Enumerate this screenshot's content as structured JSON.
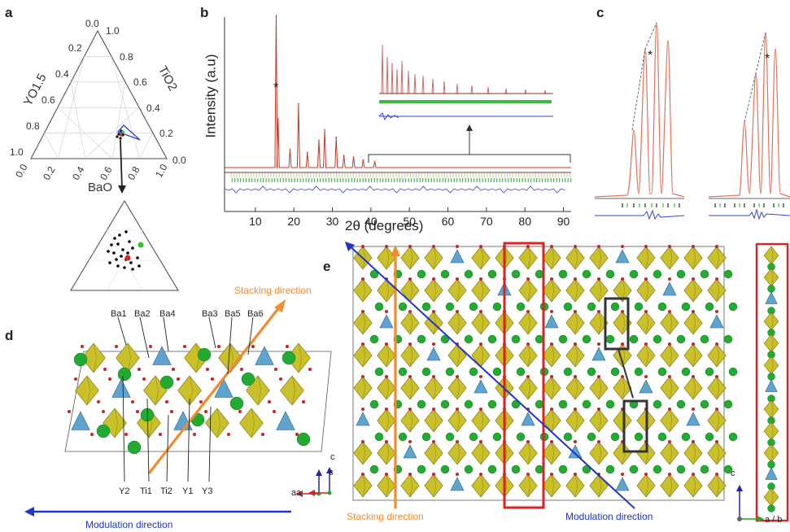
{
  "panels": {
    "a": "a",
    "b": "b",
    "c": "c",
    "d": "d",
    "e": "e"
  },
  "panel_a": {
    "left_axis_ticks": [
      "0.0",
      "0.2",
      "0.4",
      "0.6",
      "0.8",
      "1.0"
    ],
    "right_axis_ticks": [
      "1.0",
      "0.8",
      "0.6",
      "0.4",
      "0.2",
      "0.0"
    ],
    "bottom_axis_ticks": [
      "0.0",
      "0.2",
      "0.4",
      "0.6",
      "0.8",
      "1.0"
    ],
    "left_label": "YO1.5",
    "right_label": "TiO2",
    "bottom_label": "BaO",
    "inset_colors": {
      "black": "#000000",
      "green": "#22cc22",
      "red": "#dd2222"
    }
  },
  "chart_data": {
    "type": "line",
    "xlabel": "2θ (degrees)",
    "ylabel": "Intensity (a.u)",
    "xlim": [
      2,
      92
    ],
    "x_ticks": [
      "10",
      "20",
      "30",
      "40",
      "50",
      "60",
      "70",
      "80",
      "90"
    ],
    "annotations": [
      "*"
    ],
    "colors": {
      "observed": "#c0392b",
      "calculated": "#e59a9a",
      "reflections": "#22aa22",
      "difference": "#3344cc"
    },
    "peaks": [
      {
        "x": 15.4,
        "y": 1.0
      },
      {
        "x": 15.9,
        "y": 0.32
      },
      {
        "x": 19.0,
        "y": 0.12
      },
      {
        "x": 21.2,
        "y": 0.42
      },
      {
        "x": 23.5,
        "y": 0.1
      },
      {
        "x": 26.5,
        "y": 0.18
      },
      {
        "x": 28.0,
        "y": 0.25
      },
      {
        "x": 31.0,
        "y": 0.2
      },
      {
        "x": 33.0,
        "y": 0.08
      },
      {
        "x": 35.5,
        "y": 0.07
      },
      {
        "x": 38.0,
        "y": 0.05
      },
      {
        "x": 41.0,
        "y": 0.04
      }
    ]
  },
  "panel_c": {
    "annotations": [
      "*",
      "*"
    ]
  },
  "panel_d": {
    "top_labels": [
      "Ba1",
      "Ba2",
      "Ba4",
      "Ba3",
      "Ba5",
      "Ba6"
    ],
    "bottom_labels": [
      "Y2",
      "Ti1",
      "Ti2",
      "Y1",
      "Y3"
    ],
    "stacking_label": "Stacking direction",
    "modulation_label": "Modulation direction",
    "axis_c": "c",
    "axis_a": "a"
  },
  "panel_e": {
    "stacking_label": "Stacking direction",
    "modulation_label": "Modulation direction",
    "axis_c": "c",
    "axis_a": "a",
    "right_axis_c": "c",
    "right_axis_ab": "a / b"
  }
}
